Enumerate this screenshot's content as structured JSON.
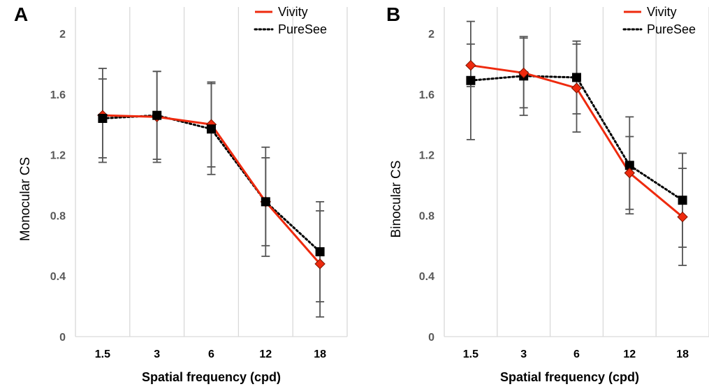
{
  "colors": {
    "vivity": "#ee2a0e",
    "vivity_marker_edge": "#7a1400",
    "puresee": "#000000",
    "grid": "#d9d9d9",
    "errorbar": "#555555"
  },
  "chart_data": [
    {
      "type": "line",
      "panel_label": "A",
      "categories": [
        "1.5",
        "3",
        "6",
        "12",
        "18"
      ],
      "xlabel": "Spatial frequency (cpd)",
      "ylabel": "Monocular CS",
      "ylim": [
        0,
        2
      ],
      "yticks": [
        "0",
        "0.4",
        "0.8",
        "1.2",
        "1.6",
        "2"
      ],
      "ytick_values": [
        0,
        0.4,
        0.8,
        1.2,
        1.6,
        2.0
      ],
      "grid": "vertical",
      "legend": "top-right",
      "series": [
        {
          "name": "Vivity",
          "style": "solid",
          "marker": "diamond",
          "values": [
            1.46,
            1.45,
            1.4,
            0.89,
            0.48
          ],
          "error": [
            0.31,
            0.3,
            0.28,
            0.36,
            0.35
          ]
        },
        {
          "name": "PureSee",
          "style": "dotted",
          "marker": "square",
          "values": [
            1.44,
            1.46,
            1.37,
            0.89,
            0.56
          ],
          "error": [
            0.26,
            0.29,
            0.3,
            0.29,
            0.33
          ]
        }
      ]
    },
    {
      "type": "line",
      "panel_label": "B",
      "categories": [
        "1.5",
        "3",
        "6",
        "12",
        "18"
      ],
      "xlabel": "Spatial frequency (cpd)",
      "ylabel": "Binocular CS",
      "ylim": [
        0,
        2
      ],
      "yticks": [
        "0",
        "0.4",
        "0.8",
        "1.2",
        "1.6",
        "2"
      ],
      "ytick_values": [
        0,
        0.4,
        0.8,
        1.2,
        1.6,
        2.0
      ],
      "grid": "vertical",
      "legend": "top-right",
      "series": [
        {
          "name": "Vivity",
          "style": "solid",
          "marker": "diamond",
          "values": [
            1.79,
            1.74,
            1.64,
            1.08,
            0.79
          ],
          "error": [
            0.14,
            0.23,
            0.29,
            0.24,
            0.32
          ]
        },
        {
          "name": "PureSee",
          "style": "dotted",
          "marker": "square",
          "values": [
            1.69,
            1.72,
            1.71,
            1.13,
            0.9
          ],
          "error": [
            0.39,
            0.26,
            0.24,
            0.32,
            0.31
          ]
        }
      ]
    }
  ]
}
